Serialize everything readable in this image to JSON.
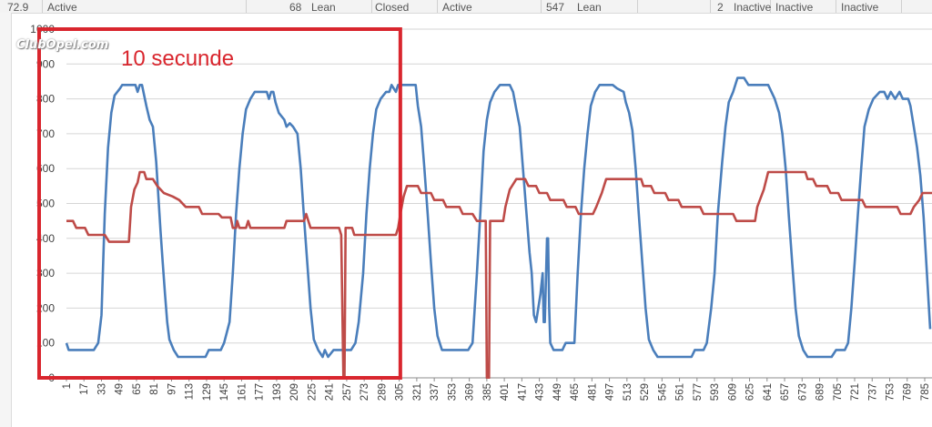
{
  "sheet_row": {
    "cells": [
      "72.9",
      "Active",
      "68",
      "Lean",
      "Closed",
      "Active",
      "547",
      "Lean",
      "2",
      "Inactive",
      "Inactive",
      "Inactive"
    ]
  },
  "watermark": "ClubOpel.com",
  "annotation": {
    "text": "10 secunde",
    "color": "#d9262e",
    "x_range": [
      1,
      306
    ],
    "y_range": [
      0,
      1000
    ]
  },
  "chart_data": {
    "type": "line",
    "title": "",
    "xlabel": "",
    "ylabel": "",
    "ylim": [
      0,
      1000
    ],
    "yticks": [
      0,
      100,
      200,
      300,
      400,
      500,
      600,
      700,
      800,
      900,
      1000
    ],
    "xlim": [
      1,
      790
    ],
    "xticks": [
      1,
      17,
      33,
      49,
      65,
      81,
      97,
      113,
      129,
      145,
      161,
      177,
      193,
      209,
      225,
      241,
      257,
      273,
      289,
      305,
      321,
      337,
      353,
      369,
      385,
      401,
      417,
      433,
      449,
      465,
      481,
      497,
      513,
      529,
      545,
      561,
      577,
      593,
      609,
      625,
      641,
      657,
      673,
      689,
      705,
      721,
      737,
      753,
      769,
      785
    ],
    "grid": true,
    "legend": "none",
    "series": [
      {
        "color": "#4a7ebb",
        "points": [
          [
            1,
            100
          ],
          [
            3,
            80
          ],
          [
            26,
            80
          ],
          [
            30,
            100
          ],
          [
            33,
            180
          ],
          [
            36,
            470
          ],
          [
            39,
            660
          ],
          [
            42,
            760
          ],
          [
            45,
            810
          ],
          [
            50,
            830
          ],
          [
            52,
            840
          ],
          [
            58,
            840
          ],
          [
            64,
            840
          ],
          [
            66,
            820
          ],
          [
            68,
            840
          ],
          [
            70,
            840
          ],
          [
            72,
            810
          ],
          [
            74,
            780
          ],
          [
            77,
            740
          ],
          [
            80,
            720
          ],
          [
            83,
            620
          ],
          [
            85,
            520
          ],
          [
            87,
            420
          ],
          [
            89,
            330
          ],
          [
            91,
            240
          ],
          [
            93,
            160
          ],
          [
            95,
            110
          ],
          [
            99,
            80
          ],
          [
            103,
            60
          ],
          [
            128,
            60
          ],
          [
            131,
            80
          ],
          [
            142,
            80
          ],
          [
            145,
            100
          ],
          [
            150,
            160
          ],
          [
            153,
            300
          ],
          [
            156,
            470
          ],
          [
            159,
            600
          ],
          [
            162,
            700
          ],
          [
            165,
            770
          ],
          [
            169,
            800
          ],
          [
            173,
            820
          ],
          [
            184,
            820
          ],
          [
            186,
            800
          ],
          [
            188,
            820
          ],
          [
            190,
            820
          ],
          [
            192,
            790
          ],
          [
            195,
            760
          ],
          [
            200,
            740
          ],
          [
            202,
            720
          ],
          [
            205,
            730
          ],
          [
            208,
            720
          ],
          [
            212,
            700
          ],
          [
            215,
            600
          ],
          [
            218,
            460
          ],
          [
            221,
            330
          ],
          [
            224,
            200
          ],
          [
            227,
            110
          ],
          [
            231,
            80
          ],
          [
            235,
            60
          ],
          [
            237,
            80
          ],
          [
            240,
            60
          ],
          [
            245,
            80
          ],
          [
            261,
            80
          ],
          [
            265,
            100
          ],
          [
            268,
            160
          ],
          [
            272,
            300
          ],
          [
            275,
            470
          ],
          [
            278,
            600
          ],
          [
            281,
            700
          ],
          [
            284,
            770
          ],
          [
            288,
            800
          ],
          [
            293,
            820
          ],
          [
            296,
            820
          ],
          [
            298,
            840
          ],
          [
            302,
            820
          ],
          [
            304,
            840
          ],
          [
            320,
            840
          ],
          [
            322,
            780
          ],
          [
            325,
            720
          ],
          [
            328,
            600
          ],
          [
            331,
            470
          ],
          [
            334,
            330
          ],
          [
            337,
            200
          ],
          [
            340,
            120
          ],
          [
            344,
            80
          ],
          [
            368,
            80
          ],
          [
            372,
            100
          ],
          [
            376,
            300
          ],
          [
            379,
            470
          ],
          [
            382,
            650
          ],
          [
            385,
            740
          ],
          [
            388,
            790
          ],
          [
            392,
            820
          ],
          [
            397,
            840
          ],
          [
            406,
            840
          ],
          [
            409,
            820
          ],
          [
            412,
            770
          ],
          [
            415,
            720
          ],
          [
            418,
            600
          ],
          [
            421,
            480
          ],
          [
            424,
            360
          ],
          [
            426,
            300
          ],
          [
            428,
            180
          ],
          [
            430,
            160
          ],
          [
            432,
            200
          ],
          [
            434,
            240
          ],
          [
            436,
            300
          ],
          [
            437,
            160
          ],
          [
            438,
            160
          ],
          [
            440,
            400
          ],
          [
            441,
            400
          ],
          [
            442,
            200
          ],
          [
            443,
            100
          ],
          [
            446,
            80
          ],
          [
            454,
            80
          ],
          [
            457,
            100
          ],
          [
            465,
            100
          ],
          [
            468,
            300
          ],
          [
            471,
            470
          ],
          [
            474,
            600
          ],
          [
            477,
            700
          ],
          [
            480,
            780
          ],
          [
            484,
            820
          ],
          [
            488,
            840
          ],
          [
            500,
            840
          ],
          [
            504,
            830
          ],
          [
            510,
            820
          ],
          [
            512,
            790
          ],
          [
            515,
            760
          ],
          [
            518,
            710
          ],
          [
            521,
            600
          ],
          [
            524,
            460
          ],
          [
            527,
            330
          ],
          [
            530,
            200
          ],
          [
            533,
            110
          ],
          [
            537,
            80
          ],
          [
            541,
            60
          ],
          [
            572,
            60
          ],
          [
            575,
            80
          ],
          [
            583,
            80
          ],
          [
            586,
            100
          ],
          [
            590,
            200
          ],
          [
            593,
            300
          ],
          [
            596,
            470
          ],
          [
            600,
            620
          ],
          [
            603,
            720
          ],
          [
            606,
            790
          ],
          [
            610,
            820
          ],
          [
            614,
            860
          ],
          [
            620,
            860
          ],
          [
            624,
            840
          ],
          [
            642,
            840
          ],
          [
            645,
            820
          ],
          [
            648,
            800
          ],
          [
            652,
            760
          ],
          [
            655,
            700
          ],
          [
            658,
            600
          ],
          [
            661,
            460
          ],
          [
            664,
            330
          ],
          [
            667,
            200
          ],
          [
            670,
            120
          ],
          [
            674,
            80
          ],
          [
            678,
            60
          ],
          [
            700,
            60
          ],
          [
            704,
            80
          ],
          [
            712,
            80
          ],
          [
            715,
            100
          ],
          [
            718,
            200
          ],
          [
            721,
            330
          ],
          [
            724,
            470
          ],
          [
            727,
            600
          ],
          [
            730,
            720
          ],
          [
            734,
            770
          ],
          [
            738,
            800
          ],
          [
            744,
            820
          ],
          [
            748,
            820
          ],
          [
            751,
            800
          ],
          [
            754,
            820
          ],
          [
            758,
            800
          ],
          [
            762,
            820
          ],
          [
            765,
            800
          ],
          [
            770,
            800
          ],
          [
            772,
            780
          ],
          [
            775,
            720
          ],
          [
            778,
            660
          ],
          [
            781,
            580
          ],
          [
            784,
            460
          ],
          [
            787,
            300
          ],
          [
            790,
            140
          ]
        ]
      },
      {
        "color": "#be4b48",
        "points": [
          [
            1,
            450
          ],
          [
            7,
            450
          ],
          [
            10,
            430
          ],
          [
            18,
            430
          ],
          [
            21,
            410
          ],
          [
            36,
            410
          ],
          [
            40,
            390
          ],
          [
            58,
            390
          ],
          [
            60,
            490
          ],
          [
            63,
            540
          ],
          [
            66,
            560
          ],
          [
            68,
            590
          ],
          [
            72,
            590
          ],
          [
            74,
            570
          ],
          [
            80,
            570
          ],
          [
            84,
            550
          ],
          [
            90,
            530
          ],
          [
            98,
            520
          ],
          [
            104,
            510
          ],
          [
            110,
            490
          ],
          [
            122,
            490
          ],
          [
            125,
            470
          ],
          [
            140,
            470
          ],
          [
            143,
            460
          ],
          [
            151,
            460
          ],
          [
            153,
            430
          ],
          [
            156,
            430
          ],
          [
            157,
            450
          ],
          [
            159,
            430
          ],
          [
            165,
            430
          ],
          [
            167,
            450
          ],
          [
            169,
            430
          ],
          [
            200,
            430
          ],
          [
            202,
            450
          ],
          [
            218,
            450
          ],
          [
            220,
            470
          ],
          [
            222,
            450
          ],
          [
            224,
            430
          ],
          [
            250,
            430
          ],
          [
            252,
            410
          ],
          [
            254,
            0
          ],
          [
            255,
            0
          ],
          [
            256,
            430
          ],
          [
            262,
            430
          ],
          [
            264,
            410
          ],
          [
            302,
            410
          ],
          [
            304,
            430
          ],
          [
            306,
            470
          ],
          [
            309,
            520
          ],
          [
            312,
            550
          ],
          [
            322,
            550
          ],
          [
            325,
            530
          ],
          [
            334,
            530
          ],
          [
            337,
            510
          ],
          [
            345,
            510
          ],
          [
            348,
            490
          ],
          [
            360,
            490
          ],
          [
            363,
            470
          ],
          [
            372,
            470
          ],
          [
            376,
            450
          ],
          [
            384,
            450
          ],
          [
            385,
            0
          ],
          [
            387,
            0
          ],
          [
            388,
            450
          ],
          [
            400,
            450
          ],
          [
            402,
            490
          ],
          [
            406,
            540
          ],
          [
            412,
            570
          ],
          [
            420,
            570
          ],
          [
            423,
            550
          ],
          [
            430,
            550
          ],
          [
            433,
            530
          ],
          [
            440,
            530
          ],
          [
            443,
            510
          ],
          [
            455,
            510
          ],
          [
            458,
            490
          ],
          [
            466,
            490
          ],
          [
            469,
            470
          ],
          [
            482,
            470
          ],
          [
            485,
            490
          ],
          [
            490,
            530
          ],
          [
            494,
            570
          ],
          [
            526,
            570
          ],
          [
            528,
            550
          ],
          [
            535,
            550
          ],
          [
            538,
            530
          ],
          [
            548,
            530
          ],
          [
            551,
            510
          ],
          [
            560,
            510
          ],
          [
            563,
            490
          ],
          [
            580,
            490
          ],
          [
            583,
            470
          ],
          [
            610,
            470
          ],
          [
            613,
            450
          ],
          [
            630,
            450
          ],
          [
            632,
            490
          ],
          [
            638,
            540
          ],
          [
            642,
            590
          ],
          [
            676,
            590
          ],
          [
            678,
            570
          ],
          [
            683,
            570
          ],
          [
            686,
            550
          ],
          [
            696,
            550
          ],
          [
            699,
            530
          ],
          [
            706,
            530
          ],
          [
            709,
            510
          ],
          [
            728,
            510
          ],
          [
            731,
            490
          ],
          [
            760,
            490
          ],
          [
            763,
            470
          ],
          [
            772,
            470
          ],
          [
            775,
            490
          ],
          [
            780,
            510
          ],
          [
            783,
            530
          ],
          [
            805,
            530
          ],
          [
            808,
            550
          ],
          [
            815,
            550
          ],
          [
            818,
            530
          ]
        ]
      }
    ]
  }
}
